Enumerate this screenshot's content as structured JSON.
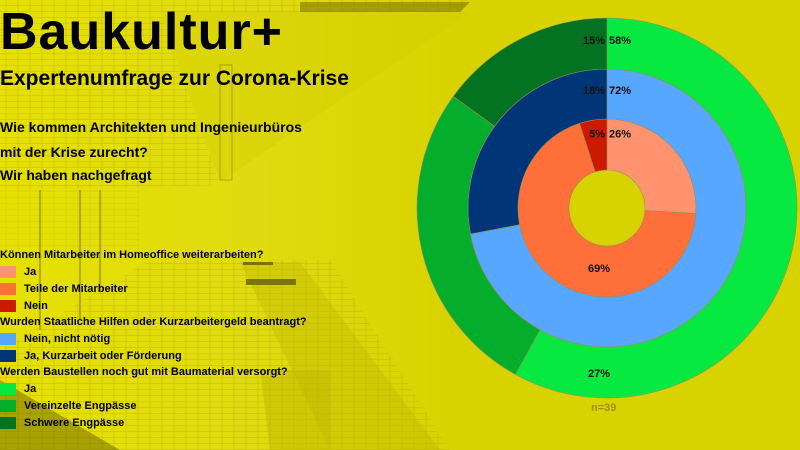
{
  "header": {
    "title": "Baukultur+",
    "subtitle": "Expertenumfrage zur Corona-Krise",
    "intro_lines": [
      "Wie kommen Architekten und Ingenieurbüros",
      "mit der Krise zurecht?",
      "Wir haben nachgefragt"
    ]
  },
  "legend": {
    "groups": [
      {
        "question": "Können Mitarbeiter im Homeoffice weiterarbeiten?",
        "items": [
          {
            "label": "Ja",
            "color": "#ff9370"
          },
          {
            "label": "Teile der Mitarbeiter",
            "color": "#ff6f3a"
          },
          {
            "label": "Nein",
            "color": "#cc1a00"
          }
        ]
      },
      {
        "question": "Wurden Staatliche Hilfen oder Kurzarbeitergeld beantragt?",
        "items": [
          {
            "label": "Nein, nicht nötig",
            "color": "#57a6ff"
          },
          {
            "label": "Ja, Kurzarbeit oder Förderung",
            "color": "#003677"
          }
        ]
      },
      {
        "question": "Werden Baustellen noch gut mit Baumaterial versorgt?",
        "items": [
          {
            "label": "Ja",
            "color": "#07e940"
          },
          {
            "label": "Vereinzelte Engpässe",
            "color": "#04ad2b"
          },
          {
            "label": "Schwere Engpässe",
            "color": "#037321"
          }
        ]
      }
    ]
  },
  "sample_size": "n=39",
  "chart_data": {
    "type": "pie",
    "subtype": "multi-ring donut",
    "title": "Expertenumfrage zur Corona-Krise",
    "note": "n=39",
    "legend_position": "left",
    "rings": [
      {
        "ring": "inner",
        "question": "Können Mitarbeiter im Homeoffice weiterarbeiten?",
        "categories": [
          "Ja",
          "Teile der Mitarbeiter",
          "Nein"
        ],
        "values": [
          26,
          69,
          5
        ],
        "labels": [
          "26%",
          "69%",
          "5%"
        ],
        "colors": [
          "#ff9370",
          "#ff6f3a",
          "#cc1a00"
        ]
      },
      {
        "ring": "middle",
        "question": "Wurden Staatliche Hilfen oder Kurzarbeitergeld beantragt?",
        "categories": [
          "Nein, nicht nötig",
          "Ja, Kurzarbeit oder Förderung"
        ],
        "values": [
          72,
          18
        ],
        "labels": [
          "72%",
          "18%"
        ],
        "colors": [
          "#57a6ff",
          "#003677"
        ]
      },
      {
        "ring": "outer",
        "question": "Werden Baustellen noch gut mit Baumaterial versorgt?",
        "categories": [
          "Ja",
          "Vereinzelte Engpässe",
          "Schwere Engpässe"
        ],
        "values": [
          58,
          27,
          15
        ],
        "labels": [
          "58%",
          "27%",
          "15%"
        ],
        "colors": [
          "#07e940",
          "#04ad2b",
          "#037321"
        ]
      }
    ]
  }
}
